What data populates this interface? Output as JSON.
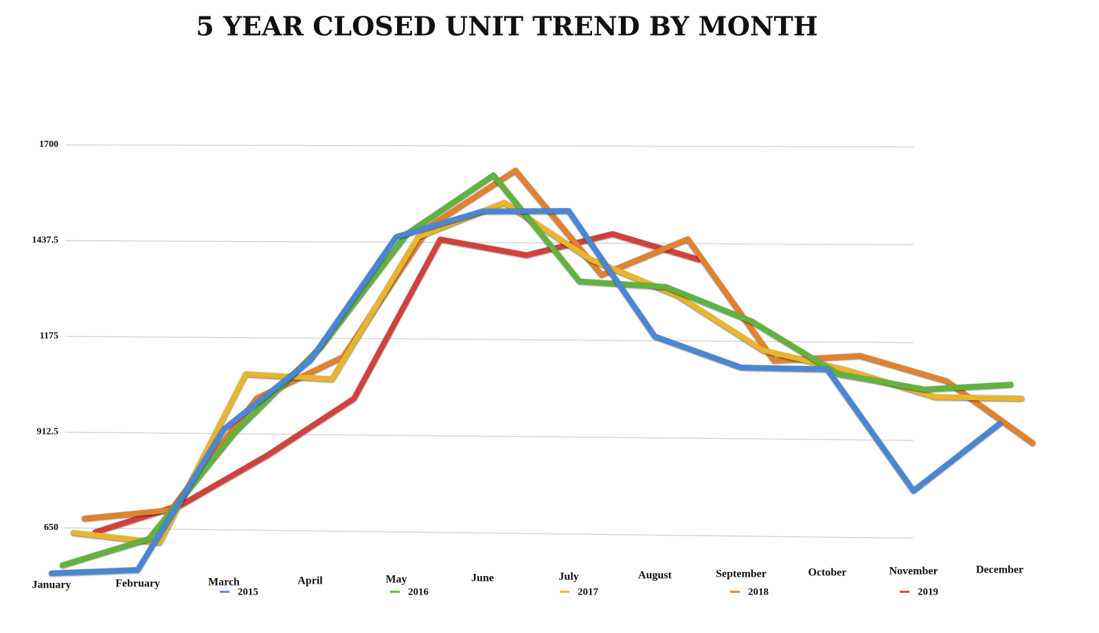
{
  "chart_data": {
    "type": "line",
    "title": "5 YEAR CLOSED UNIT TREND BY MONTH",
    "categories": [
      "January",
      "February",
      "March",
      "April",
      "May",
      "June",
      "July",
      "August",
      "September",
      "October",
      "November",
      "December"
    ],
    "ylim": [
      520,
      1700
    ],
    "yticks": [
      650,
      912.5,
      1175,
      1437.5,
      1700
    ],
    "grid": true,
    "legend": "bottom",
    "series": [
      {
        "name": "2015",
        "color": "#4a86d4",
        "values": [
          526,
          535,
          921,
          1109,
          1448,
          1518,
          1519,
          1175,
          1090,
          1085,
          752,
          936
        ]
      },
      {
        "name": "2016",
        "color": "#62b33e",
        "values": [
          548,
          620,
          912,
          1147,
          1457,
          1617,
          1326,
          1311,
          1216,
          1072,
          1030,
          1043
        ]
      },
      {
        "name": "2017",
        "color": "#e8b52f",
        "values": [
          637,
          610,
          1072,
          1058,
          1448,
          1542,
          1386,
          1288,
          1137,
          1081,
          1009,
          1005
        ]
      },
      {
        "name": "2018",
        "color": "#e2812f",
        "values": [
          676,
          699,
          1006,
          1119,
          1476,
          1630,
          1344,
          1442,
          1109,
          1122,
          1053,
          883
        ]
      },
      {
        "name": "2019",
        "color": "#d4403a",
        "values": [
          639,
          714,
          850,
          1005,
          1441,
          1398,
          1456,
          1386,
          null,
          null,
          null,
          null
        ]
      }
    ]
  }
}
